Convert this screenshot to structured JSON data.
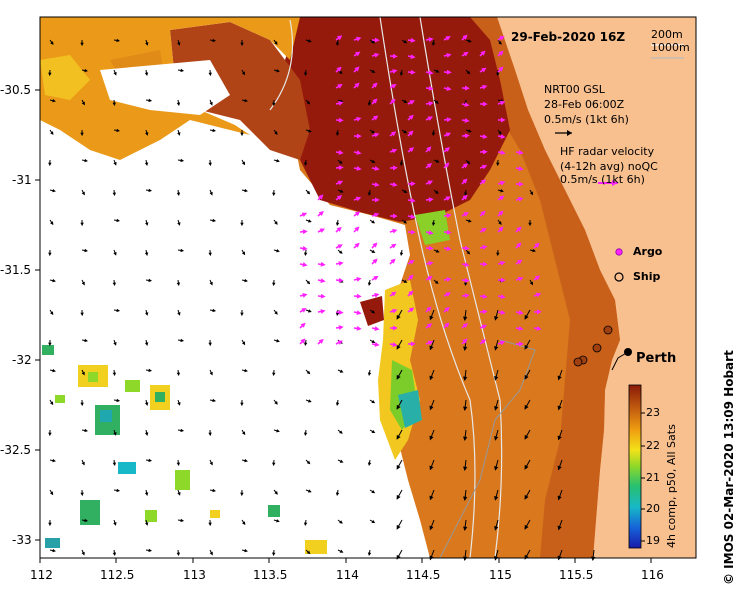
{
  "map": {
    "title": "29-Feb-2020 16Z",
    "isobaths": [
      "200m",
      "1000m"
    ],
    "gsl": {
      "line1": "NRT00 GSL",
      "line2": "28-Feb 06:00Z",
      "line3": "0.5m/s (1kt 6h)"
    },
    "hf": {
      "line1": "HF radar velocity",
      "line2": "(4-12h avg) noQC",
      "line3": "0.5m/s (1kt 6h)"
    },
    "legend": {
      "argo": "Argo",
      "ship": "Ship"
    },
    "city": "Perth",
    "credit": "© IMOS 02-Mar-2020 13:09 Hobart",
    "colorbar": {
      "title": "4h comp, p50, All Sats",
      "ticks": [
        "23",
        "22",
        "21",
        "20",
        "19"
      ]
    },
    "x_ticks": [
      "112",
      "112.5",
      "113",
      "113.5",
      "114",
      "114.5",
      "115",
      "115.5",
      "116"
    ],
    "y_ticks": [
      "-30.5",
      "-31",
      "-31.5",
      "-32",
      "-32.5",
      "-33"
    ],
    "colors": {
      "land": "#f8bf8f",
      "hf_arrow": "#ff22ff",
      "gsl_arrow": "#000000"
    }
  }
}
